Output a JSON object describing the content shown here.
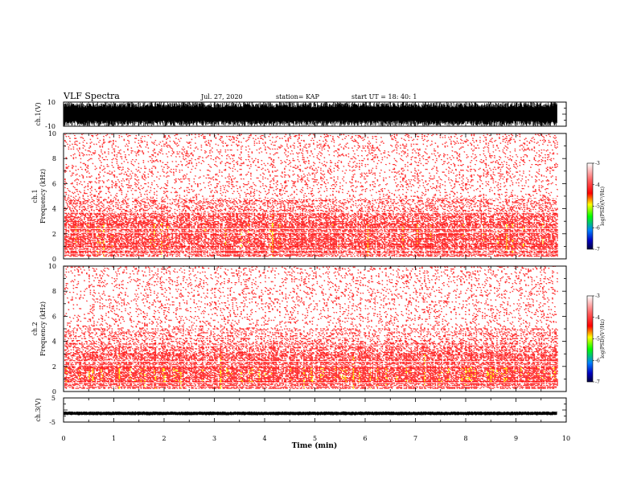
{
  "header": {
    "title": "VLF Spectra",
    "date": "Jul. 27, 2020",
    "station": "station= KAP",
    "start": "start  UT =   18: 40: 1"
  },
  "colors": {
    "background": "#ffffff",
    "axes": "#000000",
    "waveform": "#000000",
    "spectrogram_low": "#ffffff",
    "spectrogram_mid": "#ff0000",
    "spectrogram_high": "#ffff00"
  },
  "chart_data": [
    {
      "type": "line",
      "name": "ch1-waveform",
      "ylabel": "ch.1(V)",
      "ylim": [
        -10,
        10
      ],
      "yticks": [
        "10",
        "-10"
      ],
      "xlim": [
        0,
        10
      ],
      "trace_xmax": 9.82,
      "envelope": "dense saturated waveform spanning -10 to 10 V",
      "grid": false
    },
    {
      "type": "heatmap",
      "name": "ch1-spectrogram",
      "ylabel": "ch.1\nFrequency (kHz)",
      "ylim": [
        0,
        10
      ],
      "yticks": [
        "0",
        "2",
        "4",
        "6",
        "8",
        "10"
      ],
      "xlim": [
        0,
        10
      ],
      "data_xmax": 9.82,
      "bands": [
        {
          "from_khz": 0.2,
          "to_khz": 1.0,
          "level": 0.78
        },
        {
          "from_khz": 1.0,
          "to_khz": 2.8,
          "level": 0.82
        },
        {
          "from_khz": 2.8,
          "to_khz": 3.6,
          "level": 0.68
        },
        {
          "from_khz": 3.6,
          "to_khz": 4.8,
          "level": 0.4
        },
        {
          "from_khz": 4.8,
          "to_khz": 10.0,
          "level": 0.15
        }
      ],
      "colorbar": {
        "label": "log(PSD)(V²/Hz)",
        "range": [
          -7,
          -3
        ],
        "ticks": [
          "-3",
          "-4",
          "-5",
          "-6",
          "-7"
        ]
      }
    },
    {
      "type": "heatmap",
      "name": "ch2-spectrogram",
      "ylabel": "ch.2\nFrequency (kHz)",
      "ylim": [
        0,
        10
      ],
      "yticks": [
        "0",
        "2",
        "4",
        "6",
        "8",
        "10"
      ],
      "xlim": [
        0,
        10
      ],
      "data_xmax": 9.82,
      "bands": [
        {
          "from_khz": 0.2,
          "to_khz": 0.8,
          "level": 0.82
        },
        {
          "from_khz": 0.8,
          "to_khz": 1.9,
          "level": 0.9
        },
        {
          "from_khz": 1.9,
          "to_khz": 3.0,
          "level": 0.78
        },
        {
          "from_khz": 3.0,
          "to_khz": 3.8,
          "level": 0.55
        },
        {
          "from_khz": 3.8,
          "to_khz": 5.0,
          "level": 0.35
        },
        {
          "from_khz": 5.0,
          "to_khz": 10.0,
          "level": 0.15
        }
      ],
      "colorbar": {
        "label": "log(PSD)(V²/Hz)",
        "range": [
          -7,
          -3
        ],
        "ticks": [
          "-3",
          "-4",
          "-5",
          "-6",
          "-7"
        ]
      }
    },
    {
      "type": "line",
      "name": "ch3-waveform",
      "ylabel": "ch.3(V)",
      "ylim": [
        -5,
        5
      ],
      "yticks": [
        "5",
        "0",
        "-5"
      ],
      "xlim": [
        0,
        10
      ],
      "trace_xmax": 9.82,
      "level_v": -1.4,
      "envelope": "narrow band around -1.4 V",
      "grid": false
    }
  ],
  "xaxis": {
    "label": "Time (min)",
    "ticks": [
      "0",
      "1",
      "2",
      "3",
      "4",
      "5",
      "6",
      "7",
      "8",
      "9",
      "10"
    ]
  }
}
